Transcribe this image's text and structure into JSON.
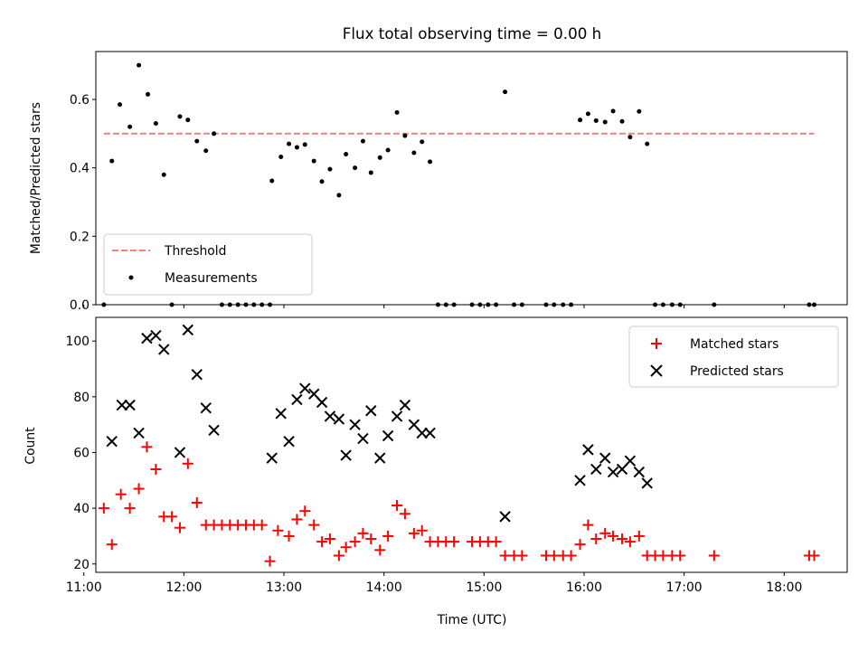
{
  "colors": {
    "threshold": "#f08080",
    "measurements": "#000000",
    "matched": "#ff0000",
    "predicted": "#000000",
    "axes": "#000000",
    "background": "#ffffff"
  },
  "chart_data": [
    {
      "type": "scatter",
      "title": "Flux total observing time = 0.00 h",
      "xlabel": "",
      "ylabel": "Matched/Predicted stars",
      "xlim": [
        11.12,
        18.63
      ],
      "ylim": [
        0,
        0.74
      ],
      "yticks": [
        0.0,
        0.2,
        0.4,
        0.6
      ],
      "ytick_labels": [
        "0.0",
        "0.2",
        "0.4",
        "0.6"
      ],
      "legend": {
        "position": "lower-left",
        "entries": [
          "Threshold",
          "Measurements"
        ]
      },
      "series": [
        {
          "name": "Threshold",
          "kind": "dashed-line",
          "x": [
            11.2,
            18.3
          ],
          "y": [
            0.5,
            0.5
          ]
        },
        {
          "name": "Measurements",
          "kind": "points",
          "x": [
            11.2,
            11.28,
            11.36,
            11.46,
            11.55,
            11.64,
            11.72,
            11.8,
            11.88,
            11.96,
            12.04,
            12.13,
            12.22,
            12.3,
            12.38,
            12.46,
            12.54,
            12.62,
            12.7,
            12.78,
            12.86,
            12.88,
            12.97,
            13.05,
            13.13,
            13.21,
            13.3,
            13.38,
            13.46,
            13.55,
            13.62,
            13.71,
            13.79,
            13.87,
            13.96,
            14.04,
            14.13,
            14.21,
            14.3,
            14.38,
            14.46,
            14.54,
            14.62,
            14.7,
            14.88,
            14.96,
            15.04,
            15.12,
            15.21,
            15.3,
            15.38,
            15.62,
            15.7,
            15.79,
            15.87,
            15.96,
            16.04,
            16.12,
            16.21,
            16.29,
            16.38,
            16.46,
            16.55,
            16.63,
            16.71,
            16.79,
            16.88,
            16.96,
            17.3,
            18.25,
            18.3
          ],
          "y": [
            0.0,
            0.42,
            0.585,
            0.52,
            0.7,
            0.615,
            0.53,
            0.38,
            0.0,
            0.55,
            0.54,
            0.478,
            0.45,
            0.5,
            0.0,
            0.0,
            0.0,
            0.0,
            0.0,
            0.0,
            0.0,
            0.362,
            0.432,
            0.47,
            0.46,
            0.468,
            0.42,
            0.36,
            0.396,
            0.32,
            0.44,
            0.4,
            0.478,
            0.386,
            0.43,
            0.452,
            0.562,
            0.494,
            0.444,
            0.476,
            0.418,
            0.0,
            0.0,
            0.0,
            0.0,
            0.0,
            0.0,
            0.0,
            0.622,
            0.0,
            0.0,
            0.0,
            0.0,
            0.0,
            0.0,
            0.54,
            0.558,
            0.538,
            0.534,
            0.566,
            0.536,
            0.49,
            0.565,
            0.47,
            0.0,
            0.0,
            0.0,
            0.0,
            0.0,
            0.0,
            0.0
          ]
        }
      ]
    },
    {
      "type": "scatter",
      "title": "",
      "xlabel": "Time (UTC)",
      "ylabel": "Count",
      "xlim": [
        11.12,
        18.63
      ],
      "ylim": [
        17,
        108.5
      ],
      "xticks": [
        11,
        12,
        13,
        14,
        15,
        16,
        17,
        18
      ],
      "xtick_labels": [
        "11:00",
        "12:00",
        "13:00",
        "14:00",
        "15:00",
        "16:00",
        "17:00",
        "18:00"
      ],
      "yticks": [
        20,
        40,
        60,
        80,
        100
      ],
      "ytick_labels": [
        "20",
        "40",
        "60",
        "80",
        "100"
      ],
      "legend": {
        "position": "top-right",
        "entries": [
          "Matched stars",
          "Predicted stars"
        ]
      },
      "series": [
        {
          "name": "Matched stars",
          "marker": "plus",
          "x": [
            11.2,
            11.28,
            11.37,
            11.46,
            11.55,
            11.63,
            11.72,
            11.8,
            11.88,
            11.96,
            12.04,
            12.13,
            12.22,
            12.3,
            12.38,
            12.46,
            12.54,
            12.62,
            12.7,
            12.78,
            12.86,
            12.94,
            13.05,
            13.13,
            13.21,
            13.3,
            13.38,
            13.46,
            13.55,
            13.62,
            13.71,
            13.79,
            13.87,
            13.96,
            14.04,
            14.13,
            14.21,
            14.3,
            14.38,
            14.46,
            14.54,
            14.62,
            14.7,
            14.88,
            14.96,
            15.04,
            15.12,
            15.21,
            15.3,
            15.38,
            15.62,
            15.7,
            15.79,
            15.87,
            15.96,
            16.04,
            16.12,
            16.21,
            16.29,
            16.38,
            16.46,
            16.55,
            16.63,
            16.71,
            16.79,
            16.88,
            16.96,
            17.3,
            18.25,
            18.3
          ],
          "y": [
            40,
            27,
            45,
            40,
            47,
            62,
            54,
            37,
            37,
            33,
            56,
            42,
            34,
            34,
            34,
            34,
            34,
            34,
            34,
            34,
            21,
            32,
            30,
            36,
            39,
            34,
            28,
            29,
            23,
            26,
            28,
            31,
            29,
            25,
            30,
            41,
            38,
            31,
            32,
            28,
            28,
            28,
            28,
            28,
            28,
            28,
            28,
            23,
            23,
            23,
            23,
            23,
            23,
            23,
            27,
            34,
            29,
            31,
            30,
            29,
            28,
            30,
            23,
            23,
            23,
            23,
            23,
            23,
            23,
            23
          ]
        },
        {
          "name": "Predicted stars",
          "marker": "x",
          "x": [
            11.28,
            11.38,
            11.46,
            11.55,
            11.63,
            11.72,
            11.8,
            11.96,
            12.04,
            12.13,
            12.22,
            12.3,
            12.88,
            12.97,
            13.05,
            13.13,
            13.21,
            13.3,
            13.38,
            13.46,
            13.55,
            13.62,
            13.71,
            13.79,
            13.87,
            13.96,
            14.04,
            14.13,
            14.21,
            14.3,
            14.38,
            14.46,
            15.21,
            15.96,
            16.04,
            16.12,
            16.21,
            16.29,
            16.38,
            16.46,
            16.55,
            16.63
          ],
          "y": [
            64,
            77,
            77,
            67,
            101,
            102,
            97,
            60,
            104,
            88,
            76,
            68,
            58,
            74,
            64,
            79,
            83,
            81,
            78,
            73,
            72,
            59,
            70,
            65,
            75,
            58,
            66,
            73,
            77,
            70,
            67,
            67,
            37,
            50,
            61,
            54,
            58,
            53,
            54,
            57,
            53,
            49
          ]
        }
      ]
    }
  ]
}
